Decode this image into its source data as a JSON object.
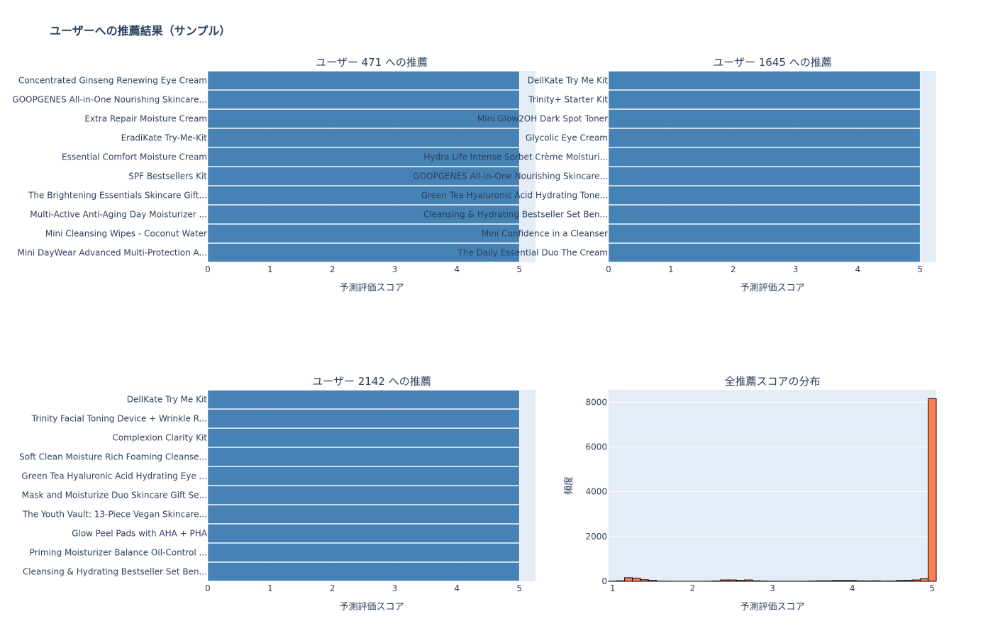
{
  "title": "ユーザーへの推薦結果（サンプル）",
  "colors": {
    "bar": "#4682b4",
    "hist": "#ff7f50",
    "plot_bg": "#e5ecf6",
    "grid": "#ffffff",
    "text": "#2a3f5f"
  },
  "chart_data": [
    {
      "type": "bar",
      "orientation": "horizontal",
      "title": "ユーザー 471 への推薦",
      "xlabel": "予測評価スコア",
      "ylabel": "",
      "xlim": [
        0,
        5.26
      ],
      "xticks": [
        0,
        1,
        2,
        3,
        4,
        5
      ],
      "categories": [
        "Concentrated Ginseng Renewing Eye Cream",
        "GOOPGENES All-in-One Nourishing Skincare...",
        "Extra Repair Moisture Cream",
        "EradiKate Try-Me-Kit",
        "Essential Comfort Moisture Cream",
        "SPF Bestsellers Kit",
        "The Brightening Essentials Skincare Gift...",
        "Multi-Active Anti-Aging Day Moisturizer ...",
        "Mini Cleansing Wipes - Coconut Water",
        "Mini DayWear Advanced Multi-Protection A..."
      ],
      "values": [
        5,
        5,
        5,
        5,
        5,
        5,
        5,
        5,
        5,
        5
      ]
    },
    {
      "type": "bar",
      "orientation": "horizontal",
      "title": "ユーザー 1645 への推薦",
      "xlabel": "予測評価スコア",
      "ylabel": "",
      "xlim": [
        0,
        5.26
      ],
      "xticks": [
        0,
        1,
        2,
        3,
        4,
        5
      ],
      "categories": [
        "DelIKate Try Me Kit",
        "Trinity+ Starter Kit",
        "Mini Glow2OH Dark Spot Toner",
        "Glycolic Eye Cream",
        "Hydra Life Intense Sorbet Crème Moisturi...",
        "GOOPGENES All-in-One Nourishing Skincare...",
        "Green Tea Hyaluronic Acid Hydrating Tone...",
        "Cleansing & Hydrating Bestseller Set Ben...",
        "Mini Confidence in a Cleanser",
        "The Daily Essential Duo The Cream"
      ],
      "values": [
        5,
        5,
        5,
        5,
        5,
        5,
        5,
        5,
        5,
        5
      ]
    },
    {
      "type": "bar",
      "orientation": "horizontal",
      "title": "ユーザー 2142 への推薦",
      "xlabel": "予測評価スコア",
      "ylabel": "",
      "xlim": [
        0,
        5.26
      ],
      "xticks": [
        0,
        1,
        2,
        3,
        4,
        5
      ],
      "categories": [
        "DelIKate Try Me Kit",
        "Trinity Facial Toning Device + Wrinkle R...",
        "Complexion Clarity Kit",
        "Soft Clean Moisture Rich Foaming Cleanse...",
        "Green Tea Hyaluronic Acid Hydrating Eye ...",
        "Mask and Moisturize Duo Skincare Gift Se...",
        "The Youth Vault: 13-Piece Vegan Skincare...",
        "Glow Peel Pads with AHA + PHA",
        "Priming Moisturizer Balance Oil-Control ...",
        "Cleansing & Hydrating Bestseller Set Ben..."
      ],
      "values": [
        5,
        5,
        5,
        5,
        5,
        5,
        5,
        5,
        5,
        5
      ]
    },
    {
      "type": "histogram",
      "title": "全推薦スコアの分布",
      "xlabel": "予測評価スコア",
      "ylabel": "頻度",
      "xlim": [
        0.95,
        5.05
      ],
      "ylim": [
        0,
        8550
      ],
      "xticks": [
        1,
        2,
        3,
        4,
        5
      ],
      "yticks": [
        0,
        2000,
        4000,
        6000,
        8000
      ],
      "bin_width": 0.1,
      "bin_centers": [
        1.0,
        1.1,
        1.2,
        1.3,
        1.4,
        1.5,
        1.6,
        1.7,
        1.8,
        1.9,
        2.0,
        2.1,
        2.2,
        2.3,
        2.4,
        2.5,
        2.6,
        2.7,
        2.8,
        2.9,
        3.0,
        3.1,
        3.2,
        3.3,
        3.4,
        3.5,
        3.6,
        3.7,
        3.8,
        3.9,
        4.0,
        4.1,
        4.2,
        4.3,
        4.4,
        4.5,
        4.6,
        4.7,
        4.8,
        4.9,
        5.0
      ],
      "counts": [
        5,
        20,
        160,
        140,
        70,
        40,
        5,
        3,
        2,
        2,
        2,
        2,
        3,
        15,
        60,
        60,
        40,
        60,
        20,
        10,
        3,
        3,
        3,
        3,
        5,
        10,
        20,
        20,
        35,
        35,
        35,
        20,
        15,
        20,
        10,
        10,
        35,
        40,
        60,
        110,
        8160
      ]
    }
  ]
}
